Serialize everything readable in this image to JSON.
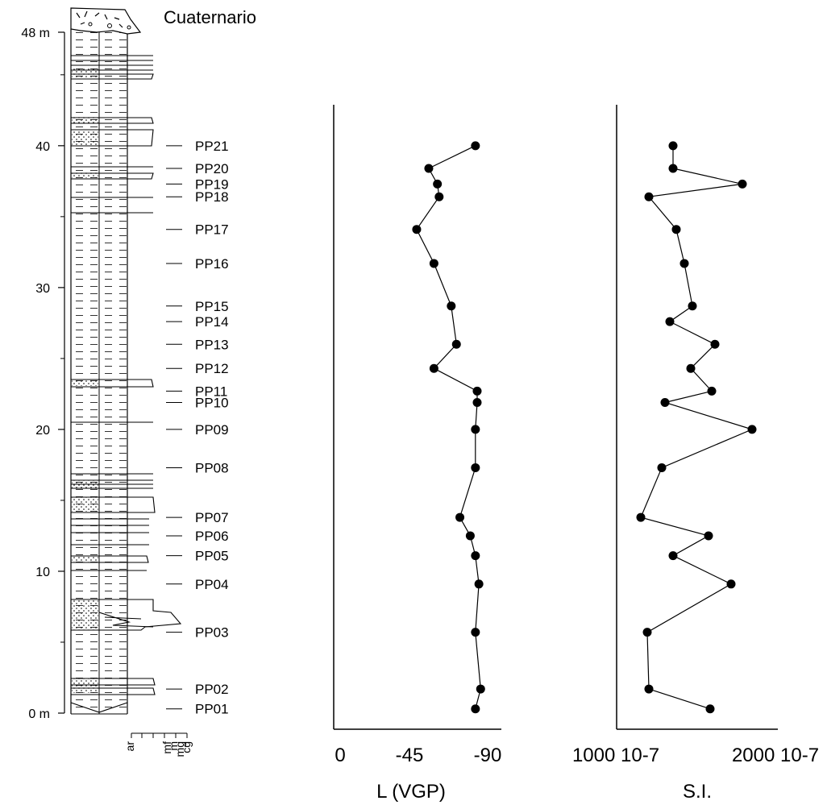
{
  "chart_data": [
    {
      "type": "table",
      "formation_label": "Cuaternario",
      "depth_ticks": [
        {
          "value": 48,
          "label": "48 m"
        },
        {
          "value": 40,
          "label": "40"
        },
        {
          "value": 30,
          "label": "30"
        },
        {
          "value": 20,
          "label": "20"
        },
        {
          "value": 10,
          "label": "10"
        },
        {
          "value": 0,
          "label": "0 m"
        }
      ],
      "ylim": [
        0,
        48
      ],
      "samples": [
        {
          "id": "PP01",
          "depth": 0.3
        },
        {
          "id": "PP02",
          "depth": 1.7
        },
        {
          "id": "PP03",
          "depth": 5.7
        },
        {
          "id": "PP04",
          "depth": 9.1
        },
        {
          "id": "PP05",
          "depth": 11.1
        },
        {
          "id": "PP06",
          "depth": 12.5
        },
        {
          "id": "PP07",
          "depth": 13.8
        },
        {
          "id": "PP08",
          "depth": 17.3
        },
        {
          "id": "PP09",
          "depth": 20.0
        },
        {
          "id": "PP10",
          "depth": 21.9
        },
        {
          "id": "PP11",
          "depth": 22.7
        },
        {
          "id": "PP12",
          "depth": 24.3
        },
        {
          "id": "PP13",
          "depth": 26.0
        },
        {
          "id": "PP14",
          "depth": 27.6
        },
        {
          "id": "PP15",
          "depth": 28.7
        },
        {
          "id": "PP16",
          "depth": 31.7
        },
        {
          "id": "PP17",
          "depth": 34.1
        },
        {
          "id": "PP18",
          "depth": 36.4
        },
        {
          "id": "PP19",
          "depth": 37.3
        },
        {
          "id": "PP20",
          "depth": 38.4
        },
        {
          "id": "PP21",
          "depth": 40.0
        }
      ],
      "grain_size_labels": [
        "ar",
        "mf",
        "m",
        "mg",
        "cg"
      ]
    },
    {
      "type": "line",
      "xlabel": "L (VGP)",
      "x_ticks": [
        "0",
        "-45",
        "-90"
      ],
      "xlim": [
        0,
        -90
      ],
      "points": [
        {
          "depth": 0.3,
          "value": -82
        },
        {
          "depth": 1.7,
          "value": -85
        },
        {
          "depth": 5.7,
          "value": -82
        },
        {
          "depth": 9.1,
          "value": -84
        },
        {
          "depth": 11.1,
          "value": -82
        },
        {
          "depth": 12.5,
          "value": -79
        },
        {
          "depth": 13.8,
          "value": -73
        },
        {
          "depth": 17.3,
          "value": -82
        },
        {
          "depth": 20.0,
          "value": -82
        },
        {
          "depth": 21.9,
          "value": -83
        },
        {
          "depth": 22.7,
          "value": -83
        },
        {
          "depth": 24.3,
          "value": -58
        },
        {
          "depth": 26.0,
          "value": -71
        },
        {
          "depth": 28.7,
          "value": -68
        },
        {
          "depth": 31.7,
          "value": -58
        },
        {
          "depth": 34.1,
          "value": -48
        },
        {
          "depth": 36.4,
          "value": -61
        },
        {
          "depth": 37.3,
          "value": -60
        },
        {
          "depth": 38.4,
          "value": -55
        },
        {
          "depth": 40.0,
          "value": -82
        }
      ]
    },
    {
      "type": "line",
      "xlabel": "S.I.",
      "x_ticks": [
        "1000 10-7",
        "2000 10-7"
      ],
      "xlim": [
        1000,
        2000
      ],
      "points": [
        {
          "depth": 0.3,
          "value": 1580
        },
        {
          "depth": 1.7,
          "value": 1200
        },
        {
          "depth": 5.7,
          "value": 1190
        },
        {
          "depth": 9.1,
          "value": 1710
        },
        {
          "depth": 11.1,
          "value": 1350
        },
        {
          "depth": 12.5,
          "value": 1570
        },
        {
          "depth": 13.8,
          "value": 1150
        },
        {
          "depth": 17.3,
          "value": 1280
        },
        {
          "depth": 20.0,
          "value": 1840
        },
        {
          "depth": 21.9,
          "value": 1300
        },
        {
          "depth": 22.7,
          "value": 1590
        },
        {
          "depth": 24.3,
          "value": 1460
        },
        {
          "depth": 26.0,
          "value": 1610
        },
        {
          "depth": 27.6,
          "value": 1330
        },
        {
          "depth": 28.7,
          "value": 1470
        },
        {
          "depth": 31.7,
          "value": 1420
        },
        {
          "depth": 34.1,
          "value": 1370
        },
        {
          "depth": 36.4,
          "value": 1200
        },
        {
          "depth": 37.3,
          "value": 1780
        },
        {
          "depth": 38.4,
          "value": 1350
        },
        {
          "depth": 40.0,
          "value": 1350
        }
      ]
    }
  ]
}
